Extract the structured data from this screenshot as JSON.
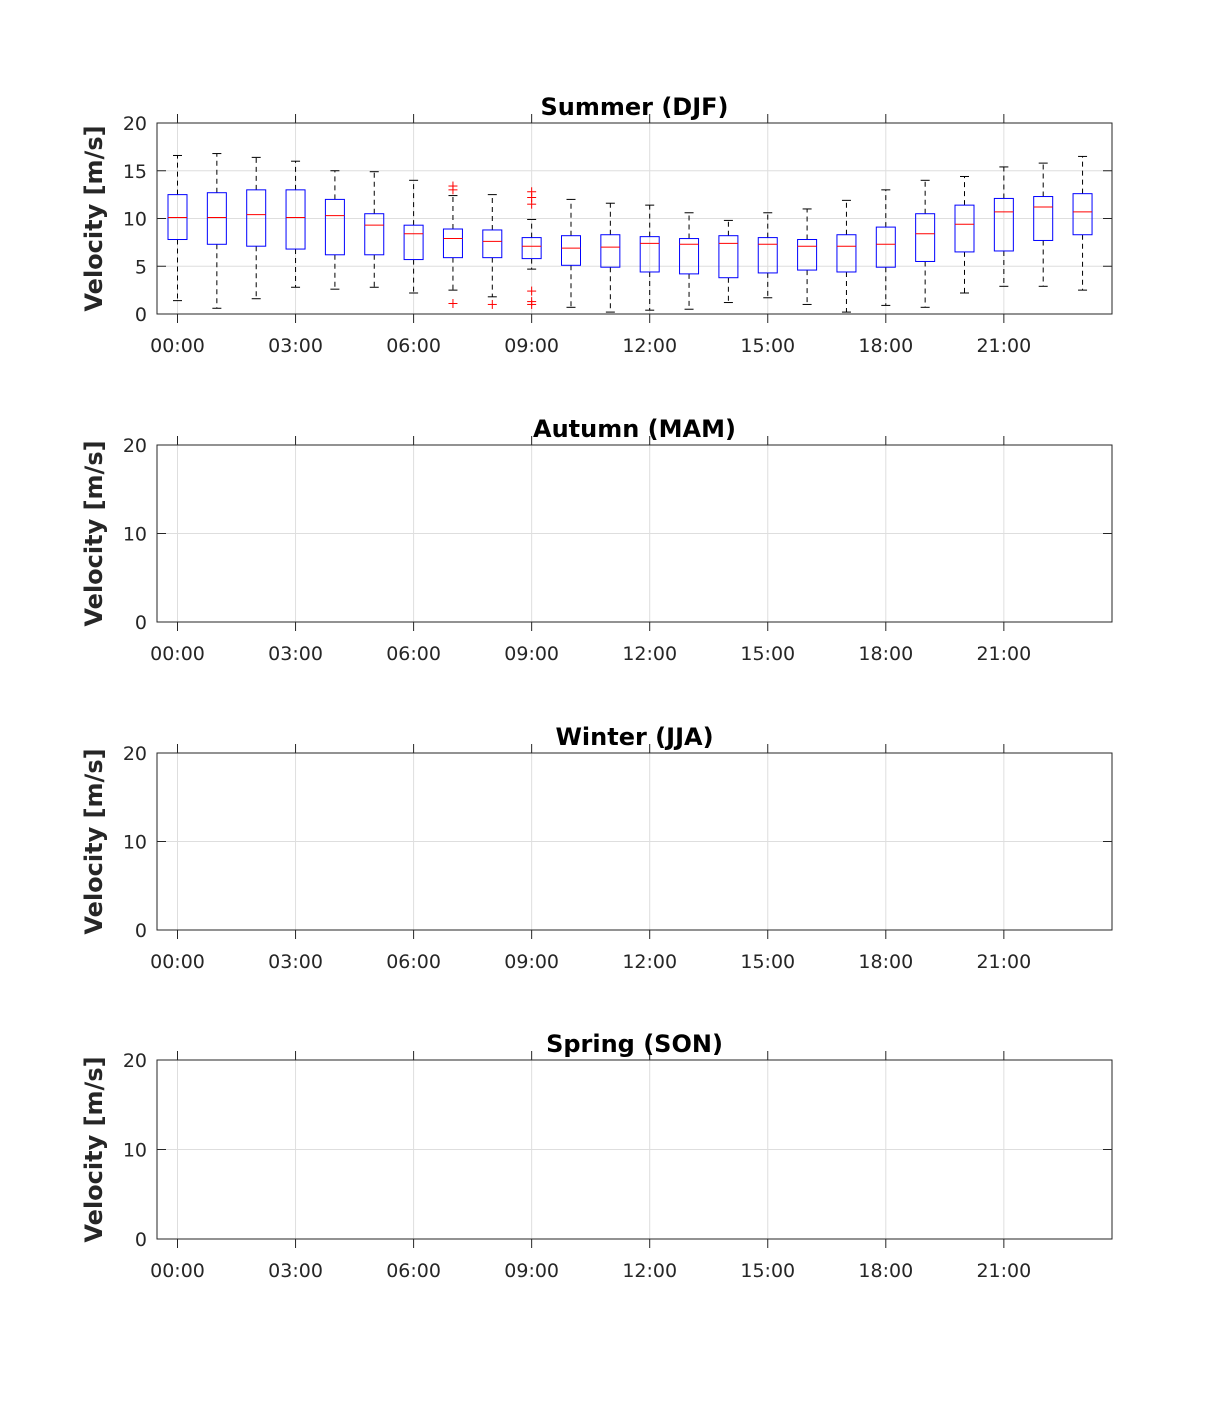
{
  "chart_data": [
    {
      "type": "box",
      "title": "Summer (DJF)",
      "ylabel": "Velocity [m/s]",
      "ylim": [
        0,
        20
      ],
      "yticks": [
        "0",
        "5",
        "10",
        "15",
        "20"
      ],
      "xticks": [
        "00:00",
        "03:00",
        "06:00",
        "09:00",
        "12:00",
        "15:00",
        "18:00",
        "21:00"
      ],
      "grid": true,
      "colors": {
        "box": "#0000ff",
        "median": "#ff0000",
        "whisker": "#000000",
        "outlier": "#ff0000",
        "grid": "#dedede",
        "axis": "#262626"
      },
      "boxes": [
        {
          "hour": 0,
          "whisker_low": 1.4,
          "q1": 7.8,
          "median": 10.1,
          "q3": 12.5,
          "whisker_high": 16.6,
          "outliers": []
        },
        {
          "hour": 1,
          "whisker_low": 0.6,
          "q1": 7.3,
          "median": 10.1,
          "q3": 12.7,
          "whisker_high": 16.8,
          "outliers": []
        },
        {
          "hour": 2,
          "whisker_low": 1.6,
          "q1": 7.1,
          "median": 10.4,
          "q3": 13.0,
          "whisker_high": 16.4,
          "outliers": []
        },
        {
          "hour": 3,
          "whisker_low": 2.8,
          "q1": 6.8,
          "median": 10.1,
          "q3": 13.0,
          "whisker_high": 16.0,
          "outliers": []
        },
        {
          "hour": 4,
          "whisker_low": 2.6,
          "q1": 6.2,
          "median": 10.3,
          "q3": 12.0,
          "whisker_high": 15.0,
          "outliers": []
        },
        {
          "hour": 5,
          "whisker_low": 2.8,
          "q1": 6.2,
          "median": 9.3,
          "q3": 10.5,
          "whisker_high": 14.9,
          "outliers": []
        },
        {
          "hour": 6,
          "whisker_low": 2.2,
          "q1": 5.7,
          "median": 8.4,
          "q3": 9.3,
          "whisker_high": 14.0,
          "outliers": []
        },
        {
          "hour": 7,
          "whisker_low": 2.5,
          "q1": 5.9,
          "median": 7.9,
          "q3": 8.9,
          "whisker_high": 12.4,
          "outliers": [
            1.1,
            13.0,
            13.4
          ]
        },
        {
          "hour": 8,
          "whisker_low": 1.8,
          "q1": 5.9,
          "median": 7.6,
          "q3": 8.8,
          "whisker_high": 12.5,
          "outliers": [
            1.0
          ]
        },
        {
          "hour": 9,
          "whisker_low": 4.7,
          "q1": 5.8,
          "median": 7.1,
          "q3": 8.0,
          "whisker_high": 9.9,
          "outliers": [
            1.0,
            1.3,
            2.4,
            11.5,
            12.2,
            12.8
          ]
        },
        {
          "hour": 10,
          "whisker_low": 0.7,
          "q1": 5.1,
          "median": 6.9,
          "q3": 8.2,
          "whisker_high": 12.0,
          "outliers": []
        },
        {
          "hour": 11,
          "whisker_low": 0.2,
          "q1": 4.9,
          "median": 7.0,
          "q3": 8.3,
          "whisker_high": 11.6,
          "outliers": []
        },
        {
          "hour": 12,
          "whisker_low": 0.4,
          "q1": 4.4,
          "median": 7.4,
          "q3": 8.1,
          "whisker_high": 11.4,
          "outliers": []
        },
        {
          "hour": 13,
          "whisker_low": 0.5,
          "q1": 4.2,
          "median": 7.3,
          "q3": 7.9,
          "whisker_high": 10.6,
          "outliers": []
        },
        {
          "hour": 14,
          "whisker_low": 1.2,
          "q1": 3.8,
          "median": 7.4,
          "q3": 8.2,
          "whisker_high": 9.8,
          "outliers": []
        },
        {
          "hour": 15,
          "whisker_low": 1.7,
          "q1": 4.3,
          "median": 7.3,
          "q3": 8.0,
          "whisker_high": 10.6,
          "outliers": []
        },
        {
          "hour": 16,
          "whisker_low": 1.0,
          "q1": 4.6,
          "median": 7.1,
          "q3": 7.8,
          "whisker_high": 11.0,
          "outliers": []
        },
        {
          "hour": 17,
          "whisker_low": 0.2,
          "q1": 4.4,
          "median": 7.1,
          "q3": 8.3,
          "whisker_high": 11.9,
          "outliers": []
        },
        {
          "hour": 18,
          "whisker_low": 0.9,
          "q1": 4.9,
          "median": 7.3,
          "q3": 9.1,
          "whisker_high": 13.0,
          "outliers": []
        },
        {
          "hour": 19,
          "whisker_low": 0.7,
          "q1": 5.5,
          "median": 8.4,
          "q3": 10.5,
          "whisker_high": 14.0,
          "outliers": []
        },
        {
          "hour": 20,
          "whisker_low": 2.2,
          "q1": 6.5,
          "median": 9.4,
          "q3": 11.4,
          "whisker_high": 14.4,
          "outliers": []
        },
        {
          "hour": 21,
          "whisker_low": 2.9,
          "q1": 6.6,
          "median": 10.7,
          "q3": 12.1,
          "whisker_high": 15.4,
          "outliers": []
        },
        {
          "hour": 22,
          "whisker_low": 2.9,
          "q1": 7.7,
          "median": 11.2,
          "q3": 12.3,
          "whisker_high": 15.8,
          "outliers": []
        },
        {
          "hour": 23,
          "whisker_low": 2.5,
          "q1": 8.3,
          "median": 10.7,
          "q3": 12.6,
          "whisker_high": 16.5,
          "outliers": []
        }
      ]
    },
    {
      "type": "box",
      "title": "Autumn (MAM)",
      "ylabel": "Velocity [m/s]",
      "ylim": [
        0,
        20
      ],
      "yticks": [
        "0",
        "10",
        "20"
      ],
      "xticks": [
        "00:00",
        "03:00",
        "06:00",
        "09:00",
        "12:00",
        "15:00",
        "18:00",
        "21:00"
      ],
      "grid": true,
      "boxes": []
    },
    {
      "type": "box",
      "title": "Winter (JJA)",
      "ylabel": "Velocity [m/s]",
      "ylim": [
        0,
        20
      ],
      "yticks": [
        "0",
        "10",
        "20"
      ],
      "xticks": [
        "00:00",
        "03:00",
        "06:00",
        "09:00",
        "12:00",
        "15:00",
        "18:00",
        "21:00"
      ],
      "grid": true,
      "boxes": []
    },
    {
      "type": "box",
      "title": "Spring (SON)",
      "ylabel": "Velocity [m/s]",
      "ylim": [
        0,
        20
      ],
      "yticks": [
        "0",
        "10",
        "20"
      ],
      "xticks": [
        "00:00",
        "03:00",
        "06:00",
        "09:00",
        "12:00",
        "15:00",
        "18:00",
        "21:00"
      ],
      "grid": true,
      "boxes": []
    }
  ]
}
